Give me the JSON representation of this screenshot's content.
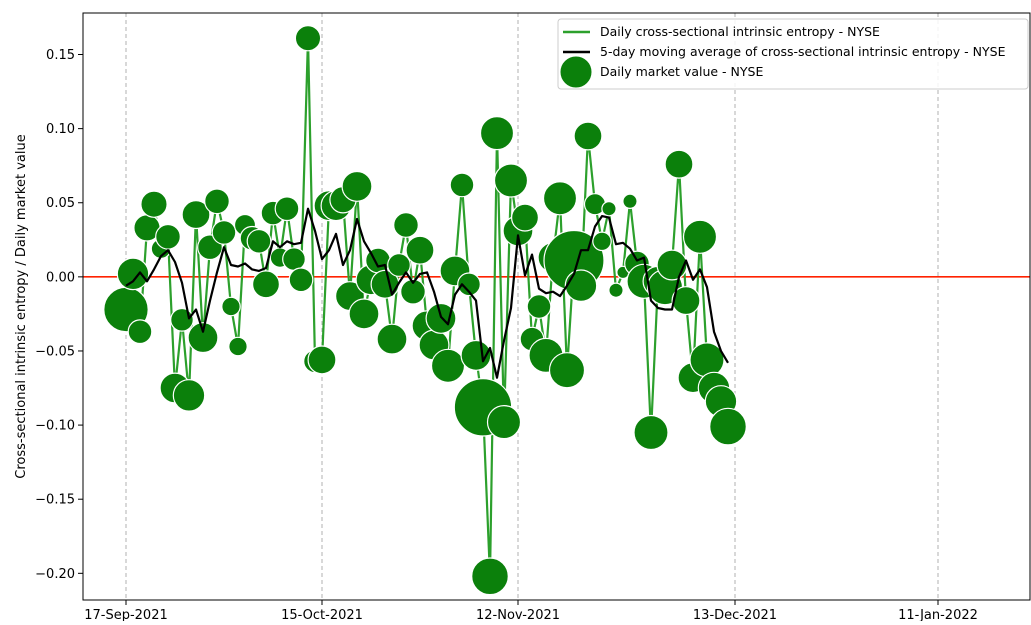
{
  "chart_data": {
    "type": "line",
    "title": "",
    "xlabel": "",
    "ylabel": "Cross-sectional intrinsic entropy / Daily market value",
    "x_tick_labels": [
      "17-Sep-2021",
      "15-Oct-2021",
      "12-Nov-2021",
      "13-Dec-2021",
      "11-Jan-2022"
    ],
    "x_tick_dates": [
      "2021-09-17",
      "2021-10-15",
      "2021-11-12",
      "2021-12-13",
      "2022-01-11"
    ],
    "y_ticks": [
      "0.15",
      "0.10",
      "0.05",
      "0.00",
      "−0.05",
      "−0.10",
      "−0.15",
      "−0.20"
    ],
    "y_tick_values": [
      0.15,
      0.1,
      0.05,
      0.0,
      -0.05,
      -0.1,
      -0.15,
      -0.2
    ],
    "ylim": [
      -0.218,
      0.178
    ],
    "xlim": [
      "2021-09-17",
      "2022-01-20"
    ],
    "grid": "vertical dashed at x ticks",
    "reference_line": {
      "y": 0.0,
      "color": "#ff2200"
    },
    "legend_position": "top-right",
    "series": [
      {
        "name": "Daily cross-sectional intrinsic entropy - NYSE",
        "kind": "line",
        "color": "#2ca02c"
      },
      {
        "name": "5-day moving average of cross-sectional intrinsic entropy - NYSE",
        "kind": "line",
        "color": "#000000"
      },
      {
        "name": "Daily market value - NYSE",
        "kind": "bubble",
        "color": "#0b800b",
        "edge": "#ffffff"
      }
    ],
    "dates": [
      "2021-09-17",
      "2021-09-18",
      "2021-09-19",
      "2021-09-20",
      "2021-09-21",
      "2021-09-22",
      "2021-09-23",
      "2021-09-24",
      "2021-09-25",
      "2021-09-26",
      "2021-09-27",
      "2021-09-28",
      "2021-09-29",
      "2021-09-30",
      "2021-10-01",
      "2021-10-02",
      "2021-10-03",
      "2021-10-04",
      "2021-10-05",
      "2021-10-06",
      "2021-10-07",
      "2021-10-08",
      "2021-10-09",
      "2021-10-10",
      "2021-10-11",
      "2021-10-12",
      "2021-10-13",
      "2021-10-14",
      "2021-10-15",
      "2021-10-16",
      "2021-10-17",
      "2021-10-18",
      "2021-10-19",
      "2021-10-20",
      "2021-10-21",
      "2021-10-22",
      "2021-10-23",
      "2021-10-24",
      "2021-10-25",
      "2021-10-26",
      "2021-10-27",
      "2021-10-28",
      "2021-10-29",
      "2021-10-30",
      "2021-10-31",
      "2021-11-01",
      "2021-11-02",
      "2021-11-03",
      "2021-11-04",
      "2021-11-05",
      "2021-11-06",
      "2021-11-07",
      "2021-11-08",
      "2021-11-09",
      "2021-11-10",
      "2021-11-11",
      "2021-11-12",
      "2021-11-13",
      "2021-11-14",
      "2021-11-15",
      "2021-11-16",
      "2021-11-17",
      "2021-11-18",
      "2021-11-19",
      "2021-11-20",
      "2021-11-21",
      "2021-11-22",
      "2021-11-23",
      "2021-11-24",
      "2021-11-25",
      "2021-11-26",
      "2021-11-27",
      "2021-11-28",
      "2021-11-29",
      "2021-11-30",
      "2021-12-01",
      "2021-12-02",
      "2021-12-03",
      "2021-12-04",
      "2021-12-05",
      "2021-12-06",
      "2021-12-07",
      "2021-12-08",
      "2021-12-09",
      "2021-12-10",
      "2021-12-11",
      "2021-12-12",
      "2021-12-13",
      "2021-12-14",
      "2021-12-15",
      "2021-12-16",
      "2021-12-17",
      "2021-12-18",
      "2021-12-19",
      "2021-12-20",
      "2021-12-21",
      "2021-12-22",
      "2021-12-23",
      "2021-12-24",
      "2021-12-25",
      "2021-12-26",
      "2021-12-27",
      "2021-12-28",
      "2021-12-29",
      "2021-12-30",
      "2021-12-31",
      "2022-01-01",
      "2022-01-02",
      "2022-01-03",
      "2022-01-04",
      "2022-01-05",
      "2022-01-06",
      "2022-01-07",
      "2022-01-08",
      "2022-01-09",
      "2022-01-10",
      "2022-01-11",
      "2022-01-12",
      "2022-01-13",
      "2022-01-14",
      "2022-01-15",
      "2022-01-16",
      "2022-01-17",
      "2022-01-18",
      "2022-01-19"
    ],
    "entropy": [
      -0.022,
      0.002,
      -0.037,
      0.033,
      0.049,
      0.019,
      0.027,
      -0.075,
      -0.029,
      -0.08,
      0.042,
      -0.041,
      0.02,
      0.051,
      0.03,
      -0.02,
      -0.047,
      0.035,
      0.026,
      0.024,
      -0.005,
      0.043,
      0.013,
      0.046,
      0.012,
      -0.002,
      0.161,
      -0.057,
      -0.056,
      0.048,
      0.048,
      0.052,
      -0.013,
      0.061,
      -0.025,
      -0.002,
      0.011,
      -0.005,
      -0.042,
      0.008,
      0.035,
      -0.01,
      0.018,
      -0.033,
      -0.046,
      -0.028,
      -0.06,
      0.004,
      0.062,
      -0.005,
      -0.053,
      -0.088,
      -0.202,
      0.097,
      -0.098,
      0.065,
      0.031,
      0.04,
      -0.042,
      -0.02,
      -0.053,
      0.013,
      0.053,
      -0.063,
      0.011,
      -0.006,
      0.095,
      0.049,
      0.024,
      0.046,
      -0.009,
      0.003,
      0.051,
      0.009,
      -0.003,
      -0.105,
      -0.003,
      -0.007,
      0.008,
      0.076,
      -0.016,
      -0.068,
      0.027,
      -0.056,
      -0.075,
      -0.084,
      -0.101
    ],
    "moving_average": [
      -0.006,
      -0.003,
      0.003,
      -0.003,
      0.005,
      0.014,
      0.018,
      0.01,
      -0.004,
      -0.028,
      -0.022,
      -0.037,
      -0.016,
      0.003,
      0.02,
      0.008,
      0.007,
      0.009,
      0.005,
      0.004,
      0.006,
      0.024,
      0.02,
      0.024,
      0.022,
      0.023,
      0.046,
      0.031,
      0.012,
      0.018,
      0.029,
      0.008,
      0.018,
      0.039,
      0.024,
      0.016,
      0.007,
      0.008,
      -0.012,
      -0.004,
      0.003,
      -0.004,
      0.002,
      0.003,
      -0.01,
      -0.027,
      -0.032,
      -0.012,
      -0.005,
      -0.01,
      -0.016,
      -0.057,
      -0.048,
      -0.068,
      -0.043,
      -0.021,
      0.028,
      0.001,
      0.015,
      -0.008,
      -0.011,
      -0.01,
      -0.013,
      -0.006,
      0.002,
      0.018,
      0.018,
      0.034,
      0.041,
      0.04,
      0.022,
      0.023,
      0.019,
      0.011,
      0.013,
      -0.016,
      -0.021,
      -0.022,
      -0.022,
      0.0,
      0.011,
      -0.002,
      0.005,
      -0.007,
      -0.037,
      -0.05,
      -0.058
    ],
    "market_value_relative": [
      0.7,
      0.45,
      0.3,
      0.35,
      0.35,
      0.22,
      0.32,
      0.42,
      0.28,
      0.45,
      0.38,
      0.42,
      0.32,
      0.32,
      0.3,
      0.2,
      0.2,
      0.25,
      0.3,
      0.3,
      0.36,
      0.3,
      0.22,
      0.3,
      0.28,
      0.3,
      0.33,
      0.28,
      0.38,
      0.42,
      0.42,
      0.35,
      0.4,
      0.42,
      0.42,
      0.42,
      0.32,
      0.38,
      0.42,
      0.28,
      0.32,
      0.32,
      0.38,
      0.42,
      0.42,
      0.42,
      0.48,
      0.42,
      0.3,
      0.28,
      0.42,
      0.95,
      0.55,
      0.48,
      0.48,
      0.48,
      0.42,
      0.36,
      0.3,
      0.3,
      0.5,
      0.42,
      0.48,
      0.52,
      1.0,
      0.45,
      0.38,
      0.25,
      0.2,
      0.12,
      0.12,
      0.08,
      0.12,
      0.32,
      0.5,
      0.5,
      0.42,
      0.52,
      0.42,
      0.38,
      0.38,
      0.42,
      0.48,
      0.5,
      0.45,
      0.45,
      0.55
    ]
  }
}
